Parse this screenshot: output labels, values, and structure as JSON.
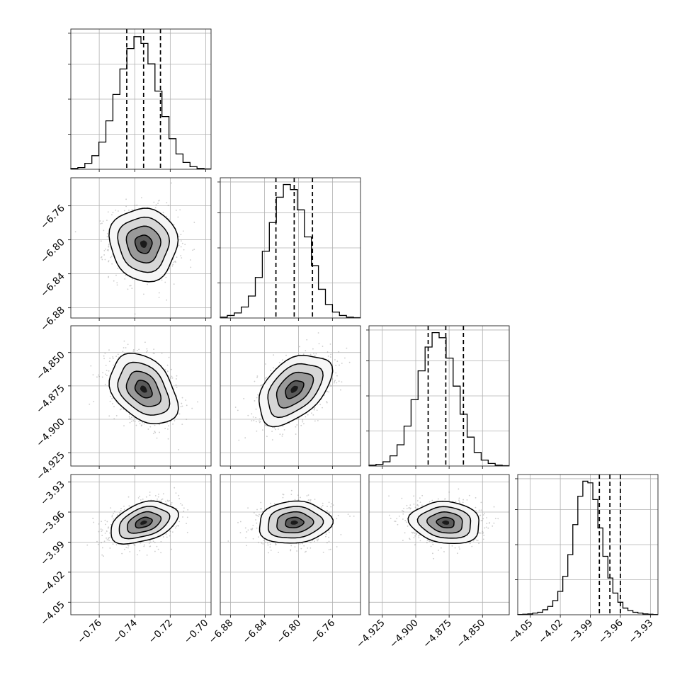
{
  "chart_data": {
    "type": "corner",
    "parameters": [
      {
        "index": 0,
        "mean": -0.735,
        "sd": 0.0095,
        "range": [
          -0.776,
          -0.697
        ],
        "ticks": [
          -0.76,
          -0.74,
          -0.72,
          -0.7
        ],
        "tick_labels": [
          "−0.76",
          "−0.74",
          "−0.72",
          "−0.70"
        ],
        "quantiles": [
          -0.7445,
          -0.735,
          -0.7255
        ]
      },
      {
        "index": 1,
        "mean": -6.805,
        "sd": 0.0215,
        "range": [
          -6.892,
          -6.727
        ],
        "ticks": [
          -6.88,
          -6.84,
          -6.8,
          -6.76
        ],
        "tick_labels": [
          "−6.88",
          "−6.84",
          "−6.80",
          "−6.76"
        ],
        "quantiles": [
          -6.8265,
          -6.805,
          -6.7835
        ]
      },
      {
        "index": 2,
        "mean": -4.8775,
        "sd": 0.0132,
        "range": [
          -4.935,
          -4.83
        ],
        "ticks": [
          -4.925,
          -4.9,
          -4.875,
          -4.85
        ],
        "tick_labels": [
          "−4.925",
          "−4.900",
          "−4.875",
          "−4.850"
        ],
        "quantiles": [
          -4.8907,
          -4.8775,
          -4.8643
        ]
      },
      {
        "index": 3,
        "mean": -3.9705,
        "sd": 0.0105,
        "range": [
          -4.0625,
          -3.9225
        ],
        "ticks": [
          -4.05,
          -4.02,
          -3.99,
          -3.96,
          -3.93
        ],
        "tick_labels": [
          "−4.05",
          "−4.02",
          "−3.99",
          "−3.96",
          "−3.93"
        ],
        "quantiles": [
          -3.981,
          -3.9705,
          -3.96
        ]
      }
    ],
    "histograms": [
      {
        "param": 0,
        "bin_edges_range": [
          -0.776,
          -0.697
        ],
        "bins": 20,
        "counts": [
          1,
          2,
          7,
          16,
          32,
          57,
          88,
          118,
          142,
          156,
          148,
          124,
          92,
          62,
          36,
          18,
          8,
          3,
          1,
          0.4
        ],
        "ylim": [
          0,
          165
        ]
      },
      {
        "param": 1,
        "bin_edges_range": [
          -6.892,
          -6.727
        ],
        "bins": 20,
        "counts": [
          1,
          3,
          6,
          13,
          26,
          48,
          79,
          113,
          143,
          158,
          152,
          128,
          96,
          62,
          34,
          16,
          7,
          3,
          1,
          0.4
        ],
        "ylim": [
          0,
          166
        ]
      },
      {
        "param": 2,
        "bin_edges_range": [
          -4.935,
          -4.83
        ],
        "bins": 20,
        "counts": [
          1,
          2,
          5,
          12,
          25,
          47,
          78,
          112,
          140,
          157,
          151,
          127,
          94,
          61,
          34,
          16,
          7,
          3,
          1,
          0.4
        ],
        "ylim": [
          0,
          165
        ]
      },
      {
        "param": 3,
        "bin_edges_range": [
          -4.0625,
          -3.9225
        ],
        "bins": 28,
        "counts": [
          0.3,
          0.6,
          1,
          2,
          3,
          6,
          10,
          17,
          28,
          46,
          72,
          108,
          142,
          160,
          158,
          138,
          104,
          70,
          44,
          26,
          15,
          8,
          5,
          3,
          2,
          1,
          0.6,
          0.3
        ],
        "ylim": [
          0,
          168
        ]
      }
    ],
    "pairs": [
      {
        "x": 0,
        "y": 1,
        "correlation": -0.05
      },
      {
        "x": 0,
        "y": 2,
        "correlation": -0.35
      },
      {
        "x": 1,
        "y": 2,
        "correlation": 0.45
      },
      {
        "x": 0,
        "y": 3,
        "correlation": 0.38
      },
      {
        "x": 1,
        "y": 3,
        "correlation": 0.08
      },
      {
        "x": 2,
        "y": 3,
        "correlation": -0.12
      }
    ],
    "contour_sigma_levels": [
      0.5,
      1.0,
      1.5,
      2.0
    ],
    "grid": true,
    "colors": {
      "line": "#000000",
      "points": "#7a7a7a",
      "grid": "#b0b0b0"
    }
  }
}
